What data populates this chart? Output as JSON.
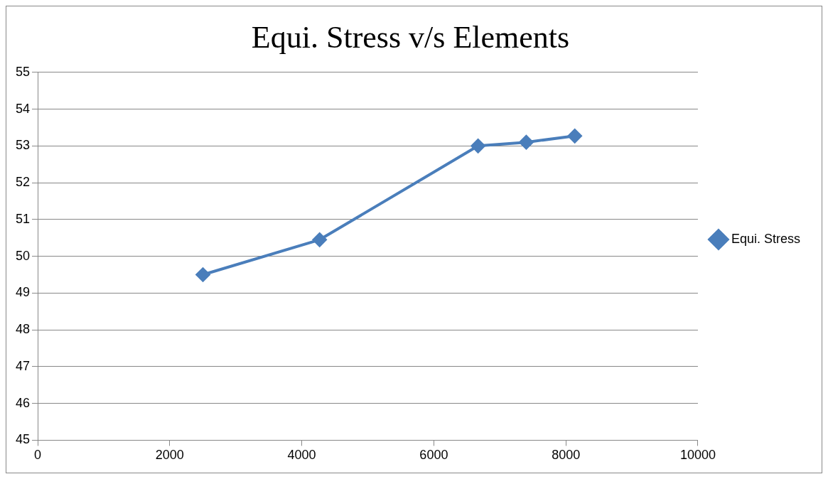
{
  "chart_data": {
    "type": "line",
    "title": "Equi. Stress v/s Elements",
    "x": [
      2503,
      4270,
      6670,
      7400,
      8135
    ],
    "series": [
      {
        "name": "Equi. Stress",
        "color": "#4a7ebb",
        "values": [
          49.5,
          50.45,
          53.0,
          53.1,
          53.27
        ]
      }
    ],
    "xlim": [
      0,
      10000
    ],
    "xticks": [
      0,
      2000,
      4000,
      6000,
      8000,
      10000
    ],
    "ylim": [
      45,
      55
    ],
    "yticks": [
      45,
      46,
      47,
      48,
      49,
      50,
      51,
      52,
      53,
      54,
      55
    ],
    "grid": "y",
    "legend": "right",
    "marker": "diamond",
    "line_style": "solid"
  }
}
